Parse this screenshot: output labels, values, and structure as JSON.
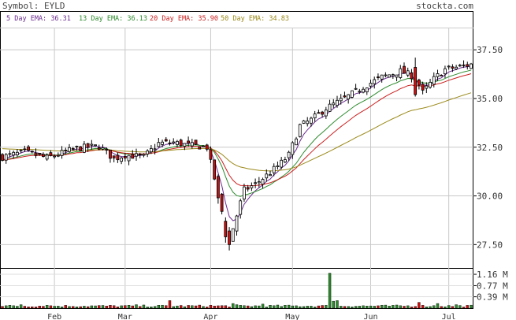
{
  "header": {
    "symbol_label": "Symbol: EYLD",
    "site": "stockta.com"
  },
  "legend": [
    {
      "label": "5 Day EMA:",
      "value": "36.31",
      "color": "#6a2b8e"
    },
    {
      "label": "13 Day EMA:",
      "value": "36.13",
      "color": "#2e8b2e"
    },
    {
      "label": "20 Day EMA:",
      "value": "35.90",
      "color": "#cc2020"
    },
    {
      "label": "50 Day EMA:",
      "value": "34.83",
      "color": "#9b8a1a"
    }
  ],
  "chart_data": [
    {
      "type": "candlestick",
      "symbol": "EYLD",
      "price_axis": {
        "ticks": [
          "37.50",
          "35.00",
          "32.50",
          "30.00",
          "27.50"
        ],
        "range": [
          26.3,
          38.6
        ]
      },
      "x_labels": [
        {
          "label": "Feb",
          "day": 14
        },
        {
          "label": "Mar",
          "day": 33
        },
        {
          "label": "Apr",
          "day": 56
        },
        {
          "label": "May",
          "day": 78
        },
        {
          "label": "Jun",
          "day": 99
        },
        {
          "label": "Jul",
          "day": 120
        }
      ],
      "day_count": 127,
      "ohlc": [],
      "ema_lines": [
        {
          "name": "5 Day EMA",
          "color": "#6a2b8e",
          "points": []
        },
        {
          "name": "13 Day EMA",
          "color": "#2e8b2e",
          "points": []
        },
        {
          "name": "20 Day EMA",
          "color": "#cc2020",
          "points": []
        },
        {
          "name": "50 Day EMA",
          "color": "#9b8a1a",
          "points": []
        }
      ],
      "up_color": "#ffffff",
      "down_color": "#cc1111"
    },
    {
      "type": "bar",
      "name": "volume",
      "axis_ticks": [
        "1.16 M",
        "0.77 M",
        "0.39 M"
      ],
      "range": [
        0,
        1.35
      ],
      "values": []
    }
  ]
}
